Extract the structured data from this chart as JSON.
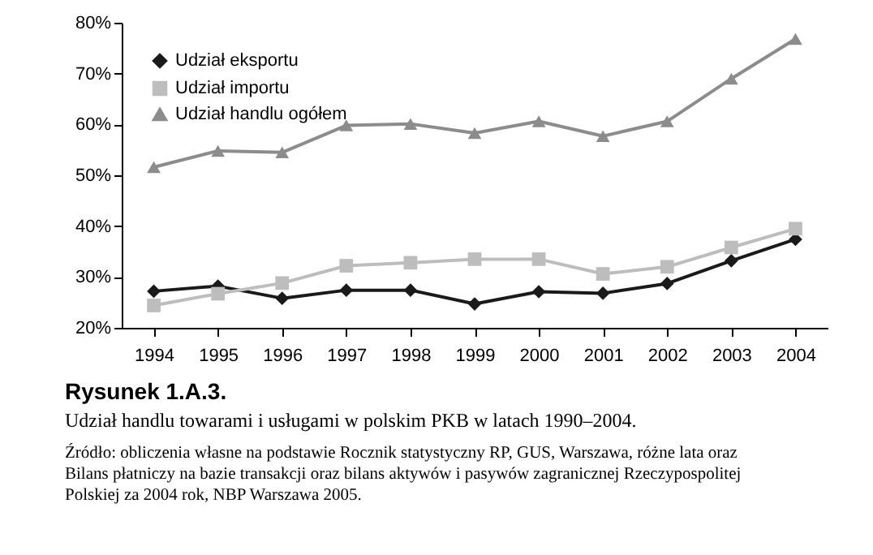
{
  "chart_data": {
    "type": "line",
    "title": "Rysunek 1.A.3.",
    "subtitle": "Udział handlu towarami i usługami w polskim PKB w latach 1990–2004.",
    "annotations": [
      "Źródło: obliczenia własne na podstawie Rocznik statystyczny RP, GUS, Warszawa, różne lata oraz Bilans płatniczy na bazie transakcji oraz bilans aktywów i pasywów zagranicznej Rzeczypospolitej Polskiej za 2004 rok, NBP Warszawa 2005."
    ],
    "categories": [
      "1994",
      "1995",
      "1996",
      "1997",
      "1998",
      "1999",
      "2000",
      "2001",
      "2002",
      "2003",
      "2004"
    ],
    "series": [
      {
        "name": "Udział eksportu",
        "color": "#1a1a1a",
        "marker": "diamond",
        "values": [
          27.2,
          28.2,
          25.8,
          27.4,
          27.4,
          24.7,
          27.1,
          26.8,
          28.7,
          33.2,
          37.4
        ]
      },
      {
        "name": "Udział importu",
        "color": "#bdbdbd",
        "marker": "square",
        "values": [
          24.4,
          26.7,
          28.8,
          32.2,
          32.8,
          33.5,
          33.5,
          30.6,
          32.0,
          35.8,
          39.5
        ]
      },
      {
        "name": "Udział handlu ogółem",
        "color": "#8c8c8c",
        "marker": "triangle",
        "values": [
          51.6,
          54.8,
          54.5,
          59.8,
          60.1,
          58.3,
          60.6,
          57.7,
          60.6,
          69.0,
          76.8
        ]
      }
    ],
    "ylim": [
      20,
      80
    ],
    "yticks": [
      {
        "value": 20,
        "label": "20%"
      },
      {
        "value": 30,
        "label": "30%"
      },
      {
        "value": 40,
        "label": "40%"
      },
      {
        "value": 50,
        "label": "50%"
      },
      {
        "value": 60,
        "label": "60%"
      },
      {
        "value": 70,
        "label": "70%"
      },
      {
        "value": 80,
        "label": "80%"
      }
    ],
    "legend": "top left",
    "grid": false,
    "line_style": "solid"
  }
}
